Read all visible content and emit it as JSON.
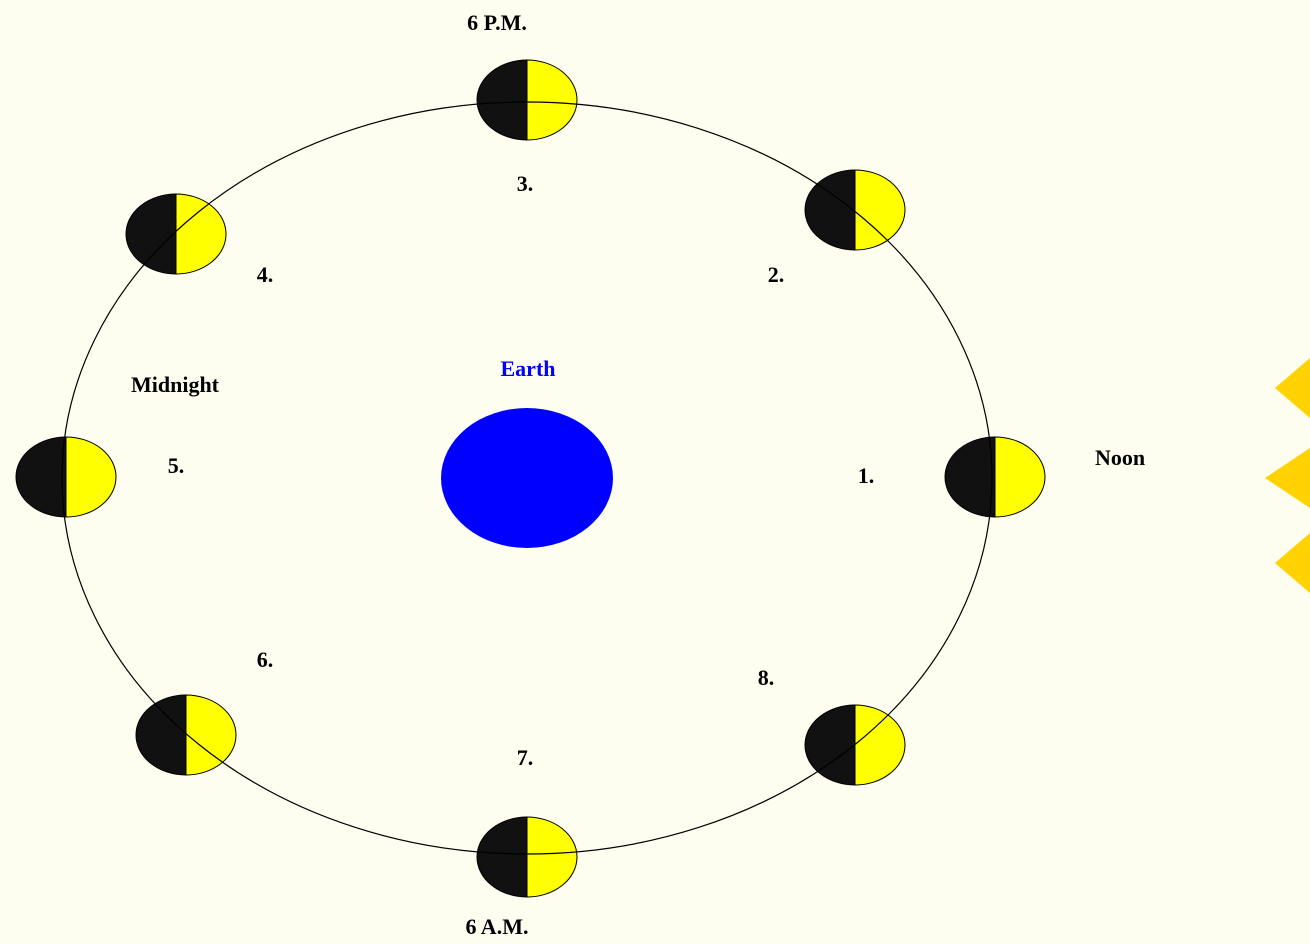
{
  "earth": {
    "label": "Earth"
  },
  "times": [
    "Noon",
    "6 P.M.",
    "Midnight",
    "6 A.M."
  ],
  "positions": [
    "1.",
    "2.",
    "3.",
    "4.",
    "5.",
    "6.",
    "7.",
    "8."
  ]
}
